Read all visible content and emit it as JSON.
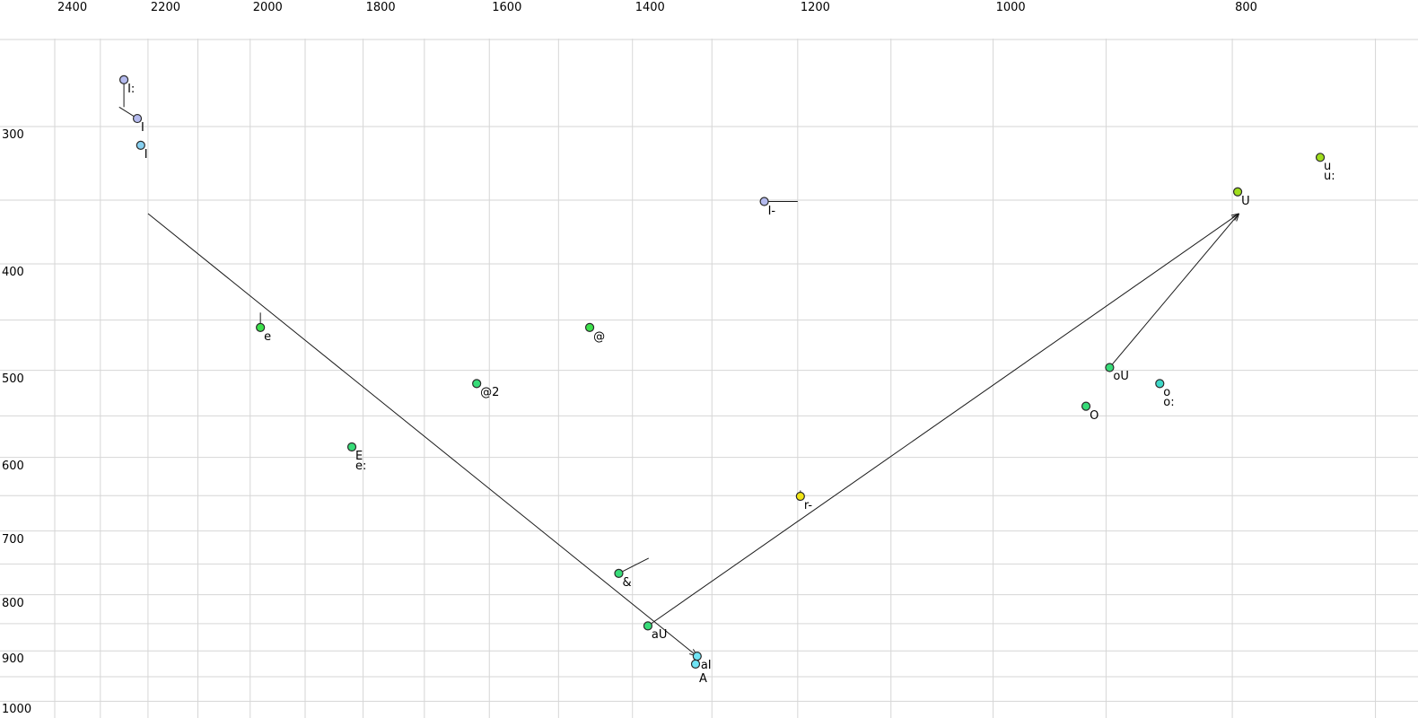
{
  "chart_data": {
    "type": "scatter",
    "title": "",
    "x_axis": {
      "position": "top",
      "scale": "log",
      "direction": "values-decrease-rightward",
      "tick_labels": [
        "2400",
        "2200",
        "2000",
        "1800",
        "1600",
        "1400",
        "1200",
        "1000",
        "800"
      ],
      "tick_label_values": [
        2400,
        2200,
        2000,
        1800,
        1600,
        1400,
        1200,
        1000,
        800
      ],
      "gridlines": [
        2400,
        2300,
        2200,
        2100,
        2000,
        1900,
        1800,
        1700,
        1600,
        1500,
        1400,
        1300,
        1200,
        1100,
        1000,
        900,
        800,
        700
      ]
    },
    "y_axis": {
      "position": "left",
      "scale": "log",
      "direction": "values-increase-downward",
      "tick_labels": [
        "300",
        "400",
        "500",
        "600",
        "700",
        "800",
        "900",
        "1000"
      ],
      "tick_label_values": [
        300,
        400,
        500,
        600,
        700,
        800,
        900,
        1000
      ],
      "gridlines": [
        250,
        300,
        350,
        400,
        450,
        500,
        550,
        600,
        650,
        700,
        750,
        800,
        850,
        900,
        950,
        1000
      ]
    },
    "grid_color": "#d6d6d6",
    "line_color": "#1a1a1a",
    "points": [
      {
        "id": "I-long",
        "labels": [
          "I:"
        ],
        "f2": 2250,
        "f1": 272,
        "color": "#b4baee",
        "tick_to": [
          2250,
          288
        ]
      },
      {
        "id": "I",
        "labels": [
          "I"
        ],
        "f2": 2222,
        "f1": 295,
        "color": "#b4baee",
        "tick_to": [
          2260,
          288
        ]
      },
      {
        "id": "I-alt",
        "labels": [
          "I"
        ],
        "f2": 2215,
        "f1": 312,
        "color": "#87d0f0"
      },
      {
        "id": "I-barred",
        "labels": [
          "I-"
        ],
        "f2": 1238,
        "f1": 351,
        "color": "#b4baee",
        "tick_to": [
          1200,
          351
        ]
      },
      {
        "id": "u-long",
        "labels": [
          "u",
          "u:"
        ],
        "f2": 737,
        "f1": 320,
        "color": "#9fdd1c"
      },
      {
        "id": "U",
        "labels": [
          "U"
        ],
        "f2": 796,
        "f1": 344,
        "color": "#9fdd1c"
      },
      {
        "id": "e",
        "labels": [
          "e"
        ],
        "f2": 1981,
        "f1": 457,
        "color": "#3ce14b",
        "tick_to": [
          1981,
          443
        ]
      },
      {
        "id": "schwa",
        "labels": [
          "@"
        ],
        "f2": 1457,
        "f1": 457,
        "color": "#3ce14b"
      },
      {
        "id": "schwa2",
        "labels": [
          "@2"
        ],
        "f2": 1619,
        "f1": 514,
        "color": "#37dc78"
      },
      {
        "id": "E",
        "labels": [
          "E",
          "e:"
        ],
        "f2": 1819,
        "f1": 587,
        "color": "#37dc78"
      },
      {
        "id": "oU",
        "labels": [
          "oU"
        ],
        "f2": 897,
        "f1": 497,
        "color": "#37dc78"
      },
      {
        "id": "o-long",
        "labels": [
          "o",
          "o:"
        ],
        "f2": 856,
        "f1": 514,
        "color": "#3ed8c8"
      },
      {
        "id": "O",
        "labels": [
          "O"
        ],
        "f2": 917,
        "f1": 539,
        "color": "#37dc78"
      },
      {
        "id": "r-syllabic",
        "labels": [
          "r-"
        ],
        "f2": 1197,
        "f1": 651,
        "color": "#f0e414",
        "tick_to": [
          1197,
          643
        ]
      },
      {
        "id": "ash",
        "labels": [
          "&"
        ],
        "f2": 1418,
        "f1": 765,
        "color": "#37dc78",
        "tick_to": [
          1379,
          741
        ]
      },
      {
        "id": "aU",
        "labels": [
          "aU"
        ],
        "f2": 1380,
        "f1": 854,
        "color": "#37dc78"
      },
      {
        "id": "aI",
        "labels": [
          "aI"
        ],
        "f2": 1318,
        "f1": 910,
        "color": "#70e4f4"
      },
      {
        "id": "A",
        "labels": [
          "A"
        ],
        "f2": 1320,
        "f1": 925,
        "color": "#70e4f4",
        "label_dy": 11
      }
    ],
    "trajectories": [
      {
        "id": "aI-glide",
        "from": [
          2200,
          360
        ],
        "to": [
          1318,
          910
        ],
        "arrow_at": "end"
      },
      {
        "id": "aU-glide",
        "from": [
          1380,
          854
        ],
        "to": [
          795,
          360
        ],
        "arrow_at": "end"
      },
      {
        "id": "oU-glide",
        "from": [
          897,
          497
        ],
        "to": [
          795,
          360
        ],
        "arrow_at": "end"
      }
    ]
  }
}
